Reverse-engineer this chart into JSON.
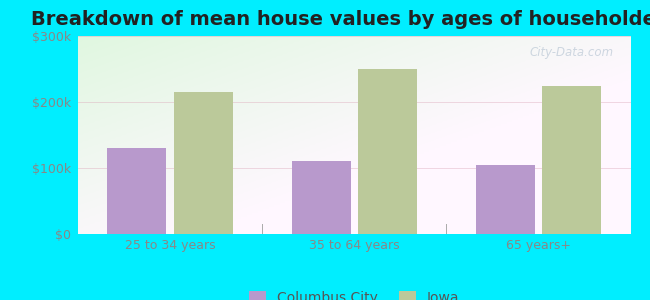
{
  "title": "Breakdown of mean house values by ages of householders",
  "categories": [
    "25 to 34 years",
    "35 to 64 years",
    "65 years+"
  ],
  "series": {
    "Columbus City": [
      130000,
      110000,
      105000
    ],
    "Iowa": [
      215000,
      250000,
      225000
    ]
  },
  "bar_colors": {
    "Columbus City": "#b899cc",
    "Iowa": "#bbc99a"
  },
  "ylim": [
    0,
    300000
  ],
  "yticks": [
    0,
    100000,
    200000,
    300000
  ],
  "ytick_labels": [
    "$0",
    "$100k",
    "$200k",
    "$300k"
  ],
  "background_color": "#00eeff",
  "title_fontsize": 14,
  "tick_fontsize": 9,
  "legend_fontsize": 10,
  "bar_width": 0.32,
  "watermark": "City-Data.com"
}
